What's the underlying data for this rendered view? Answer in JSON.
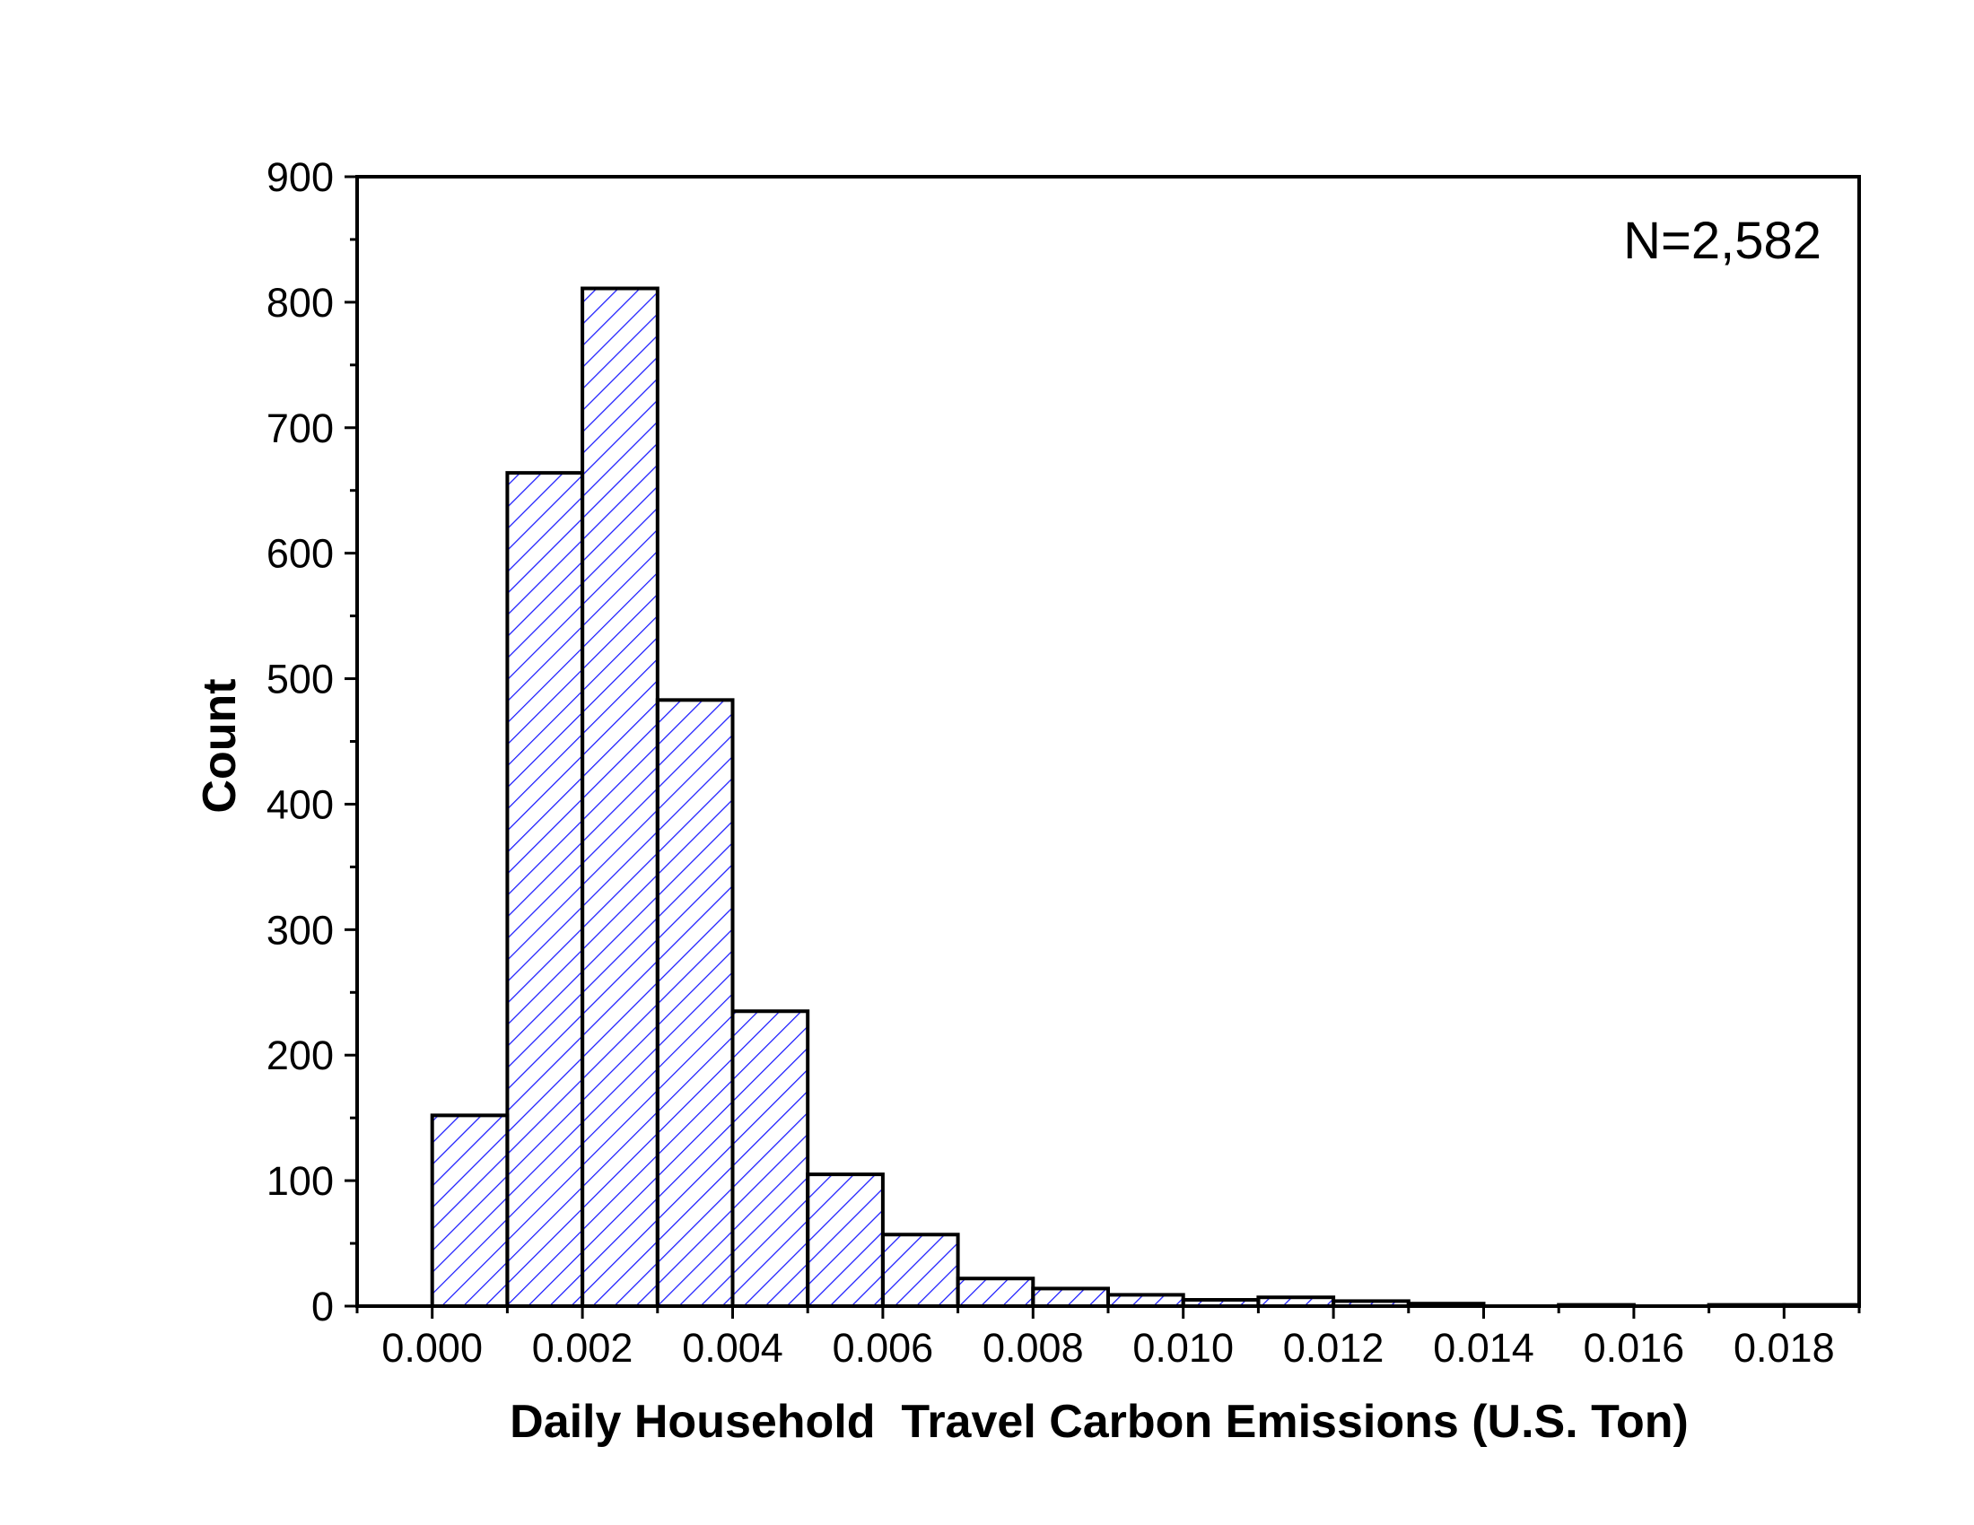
{
  "chart_data": {
    "type": "bar",
    "title": "",
    "xlabel": "Daily Household  Travel Carbon Emissions (U.S. Ton)",
    "ylabel": "Count",
    "annotation": "N=2,582",
    "xlim": [
      -0.001,
      0.019
    ],
    "ylim": [
      0,
      900
    ],
    "xticks": [
      0.0,
      0.002,
      0.004,
      0.006,
      0.008,
      0.01,
      0.012,
      0.014,
      0.016,
      0.018
    ],
    "xtick_labels": [
      "0.000",
      "0.002",
      "0.004",
      "0.006",
      "0.008",
      "0.010",
      "0.012",
      "0.014",
      "0.016",
      "0.018"
    ],
    "yticks": [
      0,
      100,
      200,
      300,
      400,
      500,
      600,
      700,
      800,
      900
    ],
    "ytick_labels": [
      "0",
      "100",
      "200",
      "300",
      "400",
      "500",
      "600",
      "700",
      "800",
      "900"
    ],
    "bin_width": 0.001,
    "bin_starts": [
      0.0,
      0.001,
      0.002,
      0.003,
      0.004,
      0.005,
      0.006,
      0.007,
      0.008,
      0.009,
      0.01,
      0.011,
      0.012,
      0.013,
      0.014,
      0.015,
      0.016,
      0.017,
      0.018
    ],
    "values": [
      152,
      664,
      811,
      483,
      235,
      105,
      57,
      22,
      14,
      9,
      5,
      7,
      4,
      2,
      0,
      1,
      0,
      1,
      1
    ],
    "grid": false,
    "fill_color": "#1a1aff",
    "edge_color": "#000000"
  }
}
